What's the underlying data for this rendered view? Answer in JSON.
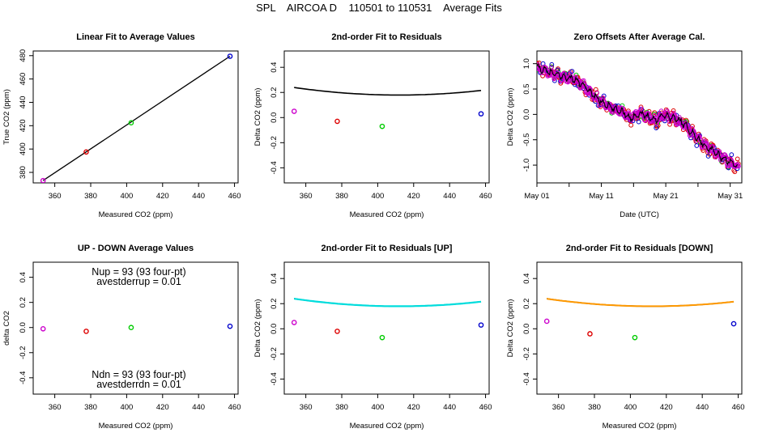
{
  "page": {
    "title": "SPL    AIRCOA D    110501 to 110531    Average Fits"
  },
  "chart_data": [
    {
      "id": "p1",
      "type": "scatter",
      "title": "Linear Fit to Average Values",
      "xlabel": "Measured CO2 (ppm)",
      "ylabel": "True CO2 (ppm)",
      "xlim": [
        348,
        462
      ],
      "ylim": [
        371,
        484
      ],
      "xticks": [
        360,
        380,
        400,
        420,
        440,
        460
      ],
      "yticks": [
        380,
        400,
        420,
        440,
        460,
        480
      ],
      "points": [
        {
          "x": 353.5,
          "y": 373.0,
          "color": "#cc00cc"
        },
        {
          "x": 377.5,
          "y": 397.5,
          "color": "#dd0000"
        },
        {
          "x": 402.5,
          "y": 422.5,
          "color": "#00cc00"
        },
        {
          "x": 457.5,
          "y": 479.5,
          "color": "#0000cc"
        }
      ],
      "lines": [
        {
          "kind": "linear",
          "color": "#000000",
          "x": [
            353.5,
            457.5
          ],
          "y": [
            373.0,
            479.5
          ]
        }
      ]
    },
    {
      "id": "p2",
      "type": "scatter",
      "title": "2nd-order Fit to Residuals",
      "xlabel": "Measured CO2 (ppm)",
      "ylabel": "Delta CO2 (ppm)",
      "xlim": [
        348,
        462
      ],
      "ylim": [
        -0.52,
        0.53
      ],
      "xticks": [
        360,
        380,
        400,
        420,
        440,
        460
      ],
      "yticks": [
        -0.4,
        -0.2,
        0.0,
        0.2,
        0.4
      ],
      "points": [
        {
          "x": 353.5,
          "y": 0.05,
          "color": "#cc00cc"
        },
        {
          "x": 377.5,
          "y": -0.03,
          "color": "#dd0000"
        },
        {
          "x": 402.5,
          "y": -0.07,
          "color": "#00cc00"
        },
        {
          "x": 457.5,
          "y": 0.03,
          "color": "#0000cc"
        }
      ],
      "lines": [
        {
          "kind": "quadratic",
          "color": "#000000",
          "width": 1.6,
          "coef": [
            3.1658,
            -0.0145,
            1.76e-05
          ],
          "range": [
            353.5,
            457.5
          ]
        }
      ]
    },
    {
      "id": "p3",
      "type": "scatter",
      "title": "Zero Offsets After Average Cal.",
      "xlabel": "Date (UTC)",
      "ylabel": "Delta CO2 (ppm)",
      "xlim": [
        0,
        31.8
      ],
      "ylim": [
        -1.35,
        1.25
      ],
      "xticks": [
        0,
        10,
        20,
        30
      ],
      "xtick_labels": [
        "May 01",
        "May 11",
        "May 21",
        "May 31"
      ],
      "minor_xticks": [
        5,
        15,
        25
      ],
      "yticks": [
        -1.0,
        -0.5,
        0.0,
        0.5,
        1.0
      ],
      "trend": [
        [
          0.0,
          0.92
        ],
        [
          3.0,
          0.78
        ],
        [
          6.0,
          0.68
        ],
        [
          8.0,
          0.48
        ],
        [
          10.0,
          0.25
        ],
        [
          12.0,
          0.1
        ],
        [
          13.5,
          0.05
        ],
        [
          14.5,
          -0.08
        ],
        [
          16.0,
          0.02
        ],
        [
          17.5,
          -0.05
        ],
        [
          18.5,
          -0.12
        ],
        [
          19.5,
          0.0
        ],
        [
          20.5,
          -0.05
        ],
        [
          21.5,
          -0.08
        ],
        [
          22.5,
          -0.15
        ],
        [
          24.0,
          -0.35
        ],
        [
          25.5,
          -0.55
        ],
        [
          27.0,
          -0.7
        ],
        [
          29.0,
          -0.88
        ],
        [
          31.0,
          -1.0
        ]
      ],
      "series": [
        {
          "color": "#dd0000",
          "noise": 0.1,
          "step": 0.14
        },
        {
          "color": "#00cc00",
          "noise": 0.08,
          "step": 0.55
        },
        {
          "color": "#0000cc",
          "noise": 0.14,
          "step": 0.45
        },
        {
          "color": "#cc00cc",
          "noise": 0.06,
          "step": 0.09
        }
      ],
      "overlay_line": {
        "color": "#000000",
        "noise": 0.04
      }
    },
    {
      "id": "p4",
      "type": "scatter",
      "title": "UP - DOWN Average Values",
      "xlabel": "Measured CO2 (ppm)",
      "ylabel": "delta CO2",
      "xlim": [
        348,
        462
      ],
      "ylim": [
        -0.53,
        0.52
      ],
      "xticks": [
        360,
        380,
        400,
        420,
        440,
        460
      ],
      "yticks": [
        -0.4,
        -0.2,
        0.0,
        0.2,
        0.4
      ],
      "points": [
        {
          "x": 353.5,
          "y": -0.01,
          "color": "#cc00cc"
        },
        {
          "x": 377.5,
          "y": -0.03,
          "color": "#dd0000"
        },
        {
          "x": 402.5,
          "y": 0.0,
          "color": "#00cc00"
        },
        {
          "x": 457.5,
          "y": 0.01,
          "color": "#0000cc"
        }
      ],
      "annotations_top": [
        "Nup = 93 (93 four-pt)",
        "avestderrup =  0.01"
      ],
      "annotations_bottom": [
        "Ndn = 93 (93 four-pt)",
        "avestderrdn =  0.01"
      ]
    },
    {
      "id": "p5",
      "type": "scatter",
      "title": "2nd-order Fit to Residuals [UP]",
      "xlabel": "Measured CO2 (ppm)",
      "ylabel": "Delta CO2 (ppm)",
      "xlim": [
        348,
        462
      ],
      "ylim": [
        -0.52,
        0.53
      ],
      "xticks": [
        360,
        380,
        400,
        420,
        440,
        460
      ],
      "yticks": [
        -0.4,
        -0.2,
        0.0,
        0.2,
        0.4
      ],
      "points": [
        {
          "x": 353.5,
          "y": 0.05,
          "color": "#cc00cc"
        },
        {
          "x": 377.5,
          "y": -0.02,
          "color": "#dd0000"
        },
        {
          "x": 402.5,
          "y": -0.07,
          "color": "#00cc00"
        },
        {
          "x": 457.5,
          "y": 0.03,
          "color": "#0000cc"
        }
      ],
      "lines": [
        {
          "kind": "quadratic",
          "color": "#000000",
          "width": 1.6,
          "coef": [
            3.1658,
            -0.0145,
            1.76e-05
          ],
          "range": [
            353.5,
            457.5
          ]
        },
        {
          "kind": "quadratic",
          "color": "#00dddd",
          "width": 2.2,
          "coef": [
            3.1658,
            -0.0145,
            1.76e-05
          ],
          "range": [
            353.5,
            457.5
          ]
        }
      ]
    },
    {
      "id": "p6",
      "type": "scatter",
      "title": "2nd-order Fit to Residuals [DOWN]",
      "xlabel": "Measured CO2 (ppm)",
      "ylabel": "Delta CO2 (ppm)",
      "xlim": [
        348,
        462
      ],
      "ylim": [
        -0.52,
        0.53
      ],
      "xticks": [
        360,
        380,
        400,
        420,
        440,
        460
      ],
      "yticks": [
        -0.4,
        -0.2,
        0.0,
        0.2,
        0.4
      ],
      "points": [
        {
          "x": 353.5,
          "y": 0.06,
          "color": "#cc00cc"
        },
        {
          "x": 377.5,
          "y": -0.04,
          "color": "#dd0000"
        },
        {
          "x": 402.5,
          "y": -0.07,
          "color": "#00cc00"
        },
        {
          "x": 457.5,
          "y": 0.04,
          "color": "#0000cc"
        }
      ],
      "lines": [
        {
          "kind": "quadratic",
          "color": "#000000",
          "width": 1.6,
          "coef": [
            3.1658,
            -0.0145,
            1.76e-05
          ],
          "range": [
            353.5,
            457.5
          ]
        },
        {
          "kind": "quadratic",
          "color": "#ff9900",
          "width": 2.0,
          "coef": [
            3.1658,
            -0.0145,
            1.76e-05
          ],
          "range": [
            353.5,
            457.5
          ]
        }
      ]
    }
  ]
}
